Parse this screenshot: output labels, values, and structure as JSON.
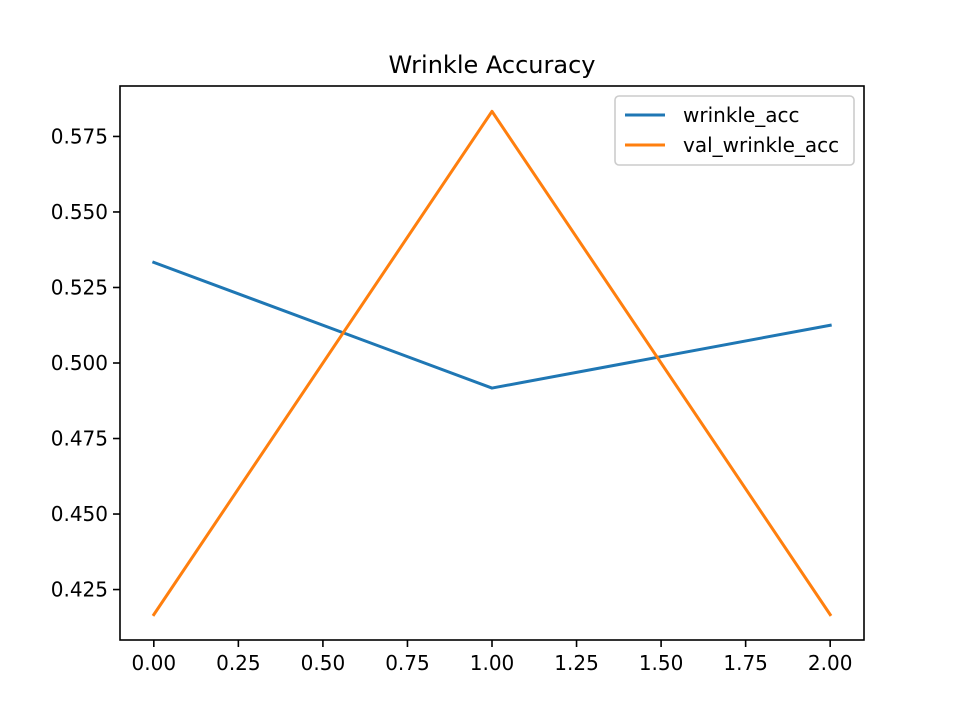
{
  "chart_data": {
    "type": "line",
    "title": "Wrinkle Accuracy",
    "xlabel": "",
    "ylabel": "",
    "x": [
      0,
      1,
      2
    ],
    "series": [
      {
        "name": "wrinkle_acc",
        "color": "#1f77b4",
        "values": [
          0.5333,
          0.4917,
          0.5125
        ]
      },
      {
        "name": "val_wrinkle_acc",
        "color": "#ff7f0e",
        "values": [
          0.4167,
          0.5833,
          0.4167
        ]
      }
    ],
    "xlim": [
      -0.1,
      2.1
    ],
    "ylim": [
      0.4083,
      0.5917
    ],
    "x_ticks": [
      0,
      0.25,
      0.5,
      0.75,
      1,
      1.25,
      1.5,
      1.75,
      2
    ],
    "x_tick_labels": [
      "0.00",
      "0.25",
      "0.50",
      "0.75",
      "1.00",
      "1.25",
      "1.50",
      "1.75",
      "2.00"
    ],
    "y_ticks": [
      0.425,
      0.45,
      0.475,
      0.5,
      0.525,
      0.55,
      0.575
    ],
    "y_tick_labels": [
      "0.425",
      "0.450",
      "0.475",
      "0.500",
      "0.525",
      "0.550",
      "0.575"
    ],
    "grid": false,
    "legend_position": "upper right"
  }
}
